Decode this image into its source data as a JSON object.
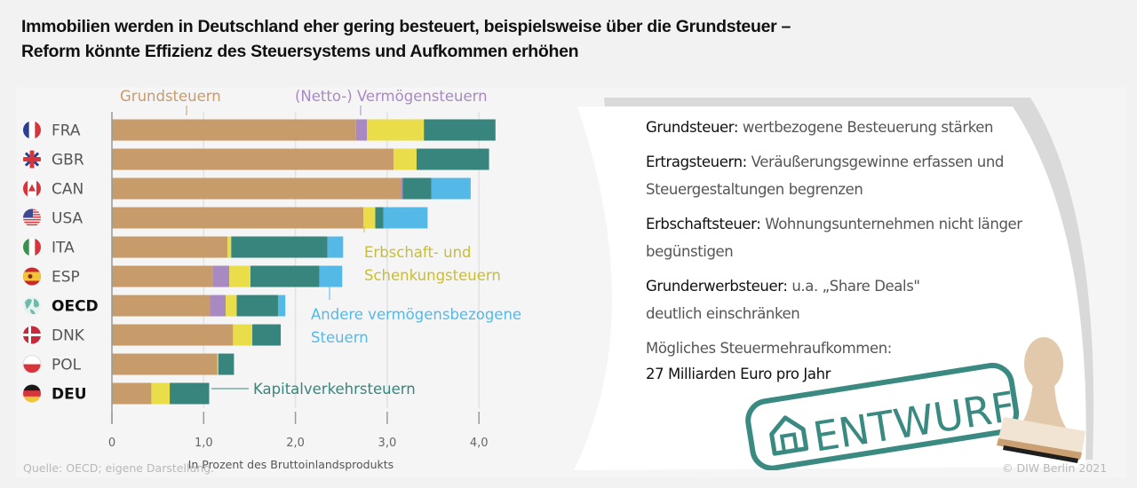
{
  "title_line1": "Immobilien werden in Deutschland eher gering besteuert, beispielsweise über die Grundsteuer –",
  "title_line2": "Reform könnte Effizienz des Steuersystems und Aufkommen erhöhen",
  "colors": {
    "Grundsteuern": "#c79b6a",
    "Vermoegensteuern": "#a889c2",
    "Erbschaft": "#e9dd4a",
    "Kapitalverkehr": "#37857d",
    "Andere": "#55b9e8",
    "axis": "#9a9a9a",
    "grid": "#e2e2e2"
  },
  "chart_data": {
    "type": "bar",
    "orientation": "horizontal",
    "stacked": true,
    "title": "Immobilien werden in Deutschland eher gering besteuert, beispielsweise über die Grundsteuer – Reform könnte Effizienz des Steuersystems und Aufkommen erhöhen",
    "xlabel": "In Prozent des Bruttoinlandsprodukts",
    "ylabel": "",
    "xlim": [
      0,
      4.0
    ],
    "xticks": [
      0,
      1.0,
      2.0,
      3.0,
      4.0
    ],
    "xtick_labels": [
      "0",
      "1,0",
      "2,0",
      "3,0",
      "4,0"
    ],
    "grid": true,
    "legend_placement": "inline-annotations",
    "categories": [
      "FRA",
      "GBR",
      "CAN",
      "USA",
      "ITA",
      "ESP",
      "OECD",
      "DNK",
      "POL",
      "DEU"
    ],
    "bold_categories": [
      "OECD",
      "DEU"
    ],
    "series": [
      {
        "name": "Grundsteuern",
        "key": "Grundsteuern",
        "values": [
          2.66,
          3.07,
          3.15,
          2.74,
          1.26,
          1.1,
          1.07,
          1.32,
          1.15,
          0.43
        ]
      },
      {
        "name": "(Netto-) Vermögensteuern",
        "key": "Vermoegensteuern",
        "values": [
          0.12,
          0.0,
          0.02,
          0.0,
          0.0,
          0.18,
          0.17,
          0.0,
          0.0,
          0.0
        ]
      },
      {
        "name": "Erbschaft- und Schenkungsteuern",
        "key": "Erbschaft",
        "values": [
          0.62,
          0.25,
          0.0,
          0.13,
          0.04,
          0.23,
          0.12,
          0.21,
          0.01,
          0.2
        ]
      },
      {
        "name": "Kapitalverkehrsteuern",
        "key": "Kapitalverkehr",
        "values": [
          0.78,
          0.79,
          0.31,
          0.09,
          1.05,
          0.75,
          0.45,
          0.31,
          0.17,
          0.43
        ]
      },
      {
        "name": "Andere vermögensbezogene Steuern",
        "key": "Andere",
        "values": [
          0.0,
          0.0,
          0.43,
          0.48,
          0.17,
          0.25,
          0.08,
          0.0,
          0.0,
          0.0
        ]
      }
    ],
    "annotations": {
      "grundsteuern": "Grundsteuern",
      "vermoegen": "(Netto-) Vermögensteuern",
      "erbschaft_l1": "Erbschaft- und",
      "erbschaft_l2": "Schenkungsteuern",
      "andere_l1": "Andere vermögensbezogene",
      "andere_l2": "Steuern",
      "kapital": "Kapitalverkehrsteuern"
    },
    "flag_icons": [
      "france-flag-icon",
      "uk-flag-icon",
      "canada-flag-icon",
      "usa-flag-icon",
      "italy-flag-icon",
      "spain-flag-icon",
      "globe-icon",
      "denmark-flag-icon",
      "poland-flag-icon",
      "germany-flag-icon"
    ]
  },
  "notes": [
    {
      "key": "Grundsteuer:",
      "text": "wertbezogene Besteuerung stärken"
    },
    {
      "key": "Ertragsteuern:",
      "text": "Veräußerungsgewinne erfassen und Steuergestaltungen begrenzen"
    },
    {
      "key": "Erbschaftsteuer:",
      "text": "Wohnungsunternehmen nicht länger begünstigen"
    },
    {
      "key": "Grunderwerbsteuer:",
      "text": "u.a. „Share Deals\" deutlich einschränken"
    }
  ],
  "revenue": {
    "label": "Mögliches Steuermehraufkommen:",
    "value": "27 Milliarden Euro pro Jahr"
  },
  "stamp": {
    "text": "ENTWURF",
    "icon": "house-icon"
  },
  "footer": {
    "source": "Quelle:  OECD; eigene Darstellung.",
    "copyright": "© DIW Berlin 2021"
  }
}
